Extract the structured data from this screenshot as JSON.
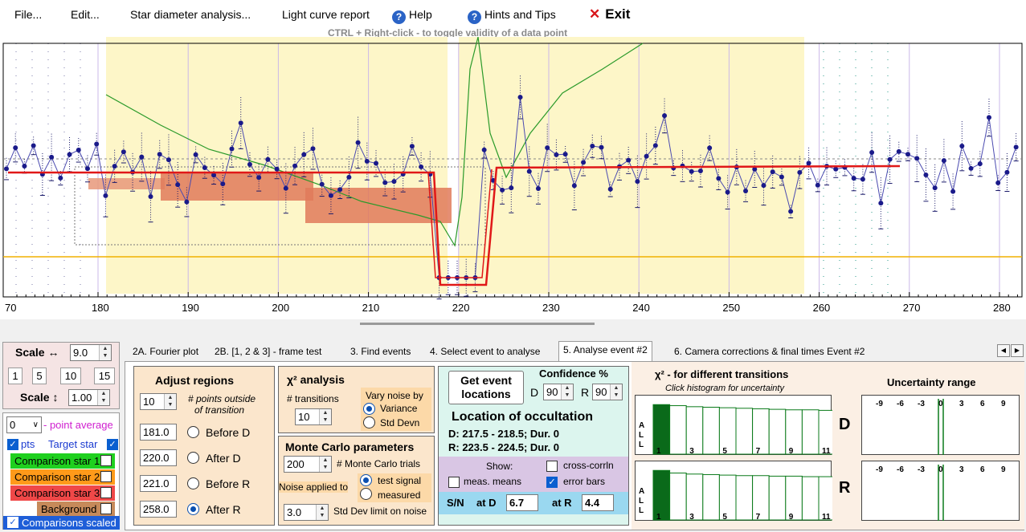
{
  "menu": {
    "file": "File...",
    "edit": "Edit...",
    "star_diameter": "Star diameter analysis...",
    "light_curve": "Light curve report",
    "help": "Help",
    "hints": "Hints and Tips",
    "exit": "Exit",
    "hint_text": "CTRL + Right-click   -   to toggle validity of a data point"
  },
  "chart_data": {
    "type": "line",
    "x_ticks": [
      "70",
      "180",
      "190",
      "200",
      "210",
      "220",
      "230",
      "240",
      "250",
      "260",
      "270",
      "280"
    ],
    "xlim": [
      170,
      283
    ],
    "regions": {
      "before_d": 181.0,
      "after_d": 220.0,
      "before_r": 221.0,
      "after_r": 258.0
    },
    "grid": true
  },
  "scale": {
    "h_label": "Scale ↔",
    "h_value": "9.0",
    "buttons": [
      "1",
      "5",
      "10",
      "15"
    ],
    "v_label": "Scale ↕",
    "v_value": "1.00"
  },
  "stars": {
    "avg_value": "0",
    "avg_label": "- point average",
    "pts_label": "pts",
    "target_label": "Target star",
    "comp1": "Comparison star 1",
    "comp2": "Comparison star 2",
    "comp3": "Comparison star 3",
    "background": "Background",
    "scaled": "Comparisons scaled",
    "colors": {
      "comp1": "#1fd01f",
      "comp2": "#ff9a1a",
      "comp3": "#f04848",
      "background": "#c68a5a",
      "scaled": "#1e5ed8"
    }
  },
  "tabs": [
    "2A. Fourier plot",
    "2B. [1, 2 & 3] - frame test",
    "3. Find events",
    "4. Select event to analyse",
    "5. Analyse event #2",
    "6. Camera corrections & final times Event #2"
  ],
  "adjust": {
    "title": "Adjust regions",
    "points_value": "10",
    "points_label_1": "# points outside",
    "points_label_2": "of transition",
    "before_d_value": "181.0",
    "before_d_label": "Before D",
    "after_d_value": "220.0",
    "after_d_label": "After D",
    "before_r_value": "221.0",
    "before_r_label": "Before R",
    "after_r_value": "258.0",
    "after_r_label": "After R"
  },
  "chi": {
    "title": "χ² analysis",
    "transitions_label": "# transitions",
    "transitions_value": "10",
    "vary_label": "Vary noise by",
    "variance": "Variance",
    "std_devn": "Std Devn"
  },
  "monte": {
    "title": "Monte Carlo parameters",
    "trials_value": "200",
    "trials_label": "# Monte Carlo trials",
    "noise_label": "Noise applied to",
    "test_signal": "test signal",
    "measured": "measured",
    "std_value": "3.0",
    "std_label": "Std Dev limit on noise"
  },
  "event": {
    "get_btn_1": "Get event",
    "get_btn_2": "locations",
    "conf_title": "Confidence %",
    "d_label": "D",
    "d_value": "90",
    "r_label": "R",
    "r_value": "90",
    "loc_title": "Location of occultation",
    "d_line": "D: 217.5 - 218.5; Dur. 0",
    "r_line": "R: 223.5 - 224.5; Dur. 0",
    "show_label": "Show:",
    "cross": "cross-corrln",
    "meas": "meas. means",
    "errbars": "error bars",
    "sn_label": "S/N",
    "at_d": "at D",
    "sn_d": "6.7",
    "at_r": "at R",
    "sn_r": "4.4"
  },
  "hist": {
    "title": "χ² - for different transitions",
    "subtitle": "Click histogram for uncertainty",
    "ticks": [
      "1",
      "3",
      "5",
      "7",
      "9",
      "11"
    ],
    "side": [
      "A",
      "L",
      "L"
    ],
    "bars_d": [
      0.95,
      0.93,
      0.91,
      0.9,
      0.89,
      0.88,
      0.87,
      0.86,
      0.85,
      0.85,
      0.84
    ],
    "bars_r": [
      0.95,
      0.9,
      0.88,
      0.87,
      0.86,
      0.85,
      0.85,
      0.84,
      0.84,
      0.83,
      0.83
    ]
  },
  "unc": {
    "title": "Uncertainty range",
    "ticks": [
      "-9",
      "-6",
      "-3",
      "0",
      "3",
      "6",
      "9"
    ],
    "d": "D",
    "r": "R"
  }
}
